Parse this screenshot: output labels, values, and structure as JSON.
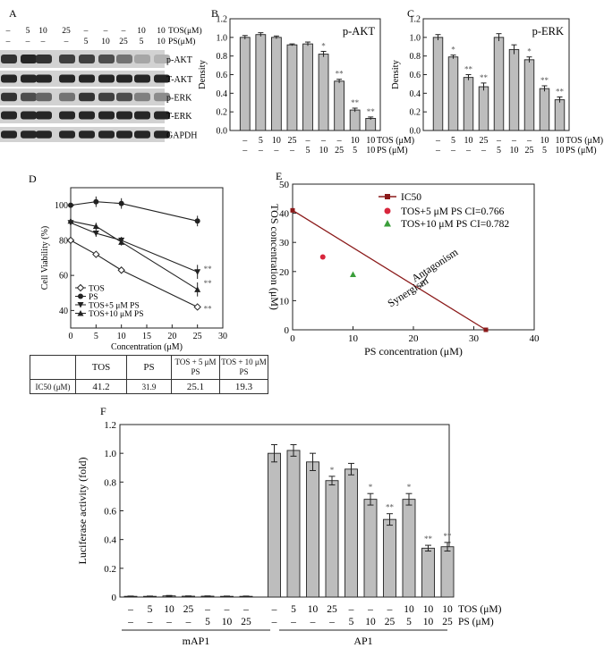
{
  "panel_letters": [
    "A",
    "B",
    "C",
    "D",
    "E",
    "F"
  ],
  "blot": {
    "lane_rows": [
      {
        "label": "TOS",
        "unit": "(μM)",
        "values": [
          "–",
          "5",
          "10",
          "25",
          "–",
          "–",
          "–",
          "10",
          "10"
        ]
      },
      {
        "label": "PS",
        "unit": "(μM)",
        "values": [
          "–",
          "–",
          "–",
          "–",
          "5",
          "10",
          "25",
          "5",
          "10"
        ]
      }
    ],
    "bands": [
      "p-AKT",
      "T-AKT",
      "p-ERK",
      "T-ERK",
      "GAPDH"
    ]
  },
  "chart_data": [
    {
      "id": "B",
      "type": "bar",
      "title": "p-AKT",
      "ylabel": "Density",
      "ylim": [
        0,
        1.2
      ],
      "yticks": [
        "0.0",
        "0.2",
        "0.4",
        "0.6",
        "0.8",
        "1.0",
        "1.2"
      ],
      "categories": [
        "ctrl",
        "TOS5",
        "TOS10",
        "TOS25",
        "PS5",
        "PS10",
        "PS25",
        "TOS10+PS5",
        "TOS10+PS10"
      ],
      "values": [
        1.0,
        1.03,
        1.0,
        0.92,
        0.93,
        0.82,
        0.53,
        0.22,
        0.13
      ],
      "errors": [
        0.02,
        0.02,
        0.015,
        0.01,
        0.02,
        0.03,
        0.02,
        0.02,
        0.015
      ],
      "significance": [
        "",
        "",
        "",
        "",
        "",
        "*",
        "**",
        "**",
        "**"
      ],
      "condition_rows": [
        {
          "label": "TOS (μM)",
          "values": [
            "–",
            "5",
            "10",
            "25",
            "–",
            "–",
            "–",
            "10",
            "10"
          ]
        },
        {
          "label": "PS (μM)",
          "values": [
            "–",
            "–",
            "–",
            "–",
            "5",
            "10",
            "25",
            "5",
            "10"
          ]
        }
      ]
    },
    {
      "id": "C",
      "type": "bar",
      "title": "p-ERK",
      "ylabel": "Density",
      "ylim": [
        0,
        1.2
      ],
      "yticks": [
        "0.0",
        "0.2",
        "0.4",
        "0.6",
        "0.8",
        "1.0",
        "1.2"
      ],
      "categories": [
        "ctrl",
        "TOS5",
        "TOS10",
        "TOS25",
        "PS5",
        "PS10",
        "PS25",
        "TOS10+PS5",
        "TOS10+PS10"
      ],
      "values": [
        1.0,
        0.79,
        0.57,
        0.47,
        1.0,
        0.87,
        0.76,
        0.45,
        0.33
      ],
      "errors": [
        0.03,
        0.02,
        0.03,
        0.04,
        0.04,
        0.05,
        0.03,
        0.03,
        0.03
      ],
      "significance": [
        "",
        "*",
        "**",
        "**",
        "",
        "",
        "*",
        "**",
        "**"
      ],
      "condition_rows": [
        {
          "label": "TOS (μM)",
          "values": [
            "–",
            "5",
            "10",
            "25",
            "–",
            "–",
            "–",
            "10",
            "10"
          ]
        },
        {
          "label": "PS (μM)",
          "values": [
            "–",
            "–",
            "–",
            "–",
            "5",
            "10",
            "25",
            "5",
            "10"
          ]
        }
      ]
    },
    {
      "id": "D",
      "type": "line",
      "ylabel": "Cell Viability (%)",
      "xlabel": "Concentration (μM)",
      "xlim": [
        0,
        30
      ],
      "ylim": [
        30,
        110
      ],
      "xticks": [
        "0",
        "5",
        "10",
        "15",
        "20",
        "25",
        "30"
      ],
      "yticks": [
        "40",
        "60",
        "80",
        "100"
      ],
      "series": [
        {
          "name": "TOS",
          "marker": "diamond",
          "x": [
            0,
            5,
            10,
            25
          ],
          "y": [
            80,
            72,
            63,
            42
          ],
          "err": [
            1,
            1,
            1,
            1
          ]
        },
        {
          "name": "PS",
          "marker": "circle",
          "x": [
            0,
            5,
            10,
            25
          ],
          "y": [
            100,
            102,
            101,
            91
          ],
          "err": [
            2,
            3,
            3,
            3
          ]
        },
        {
          "name": "TOS+5 μM PS",
          "marker": "triangle-down",
          "x": [
            0,
            5,
            10,
            25
          ],
          "y": [
            90,
            84,
            80,
            62
          ],
          "err": [
            2,
            2,
            2,
            4
          ]
        },
        {
          "name": "TOS+10 μM PS",
          "marker": "triangle-up",
          "x": [
            0,
            5,
            10,
            25
          ],
          "y": [
            91,
            88,
            79,
            52
          ],
          "err": [
            2,
            2,
            2,
            4
          ]
        }
      ],
      "significance": [
        "**",
        "**",
        "**"
      ]
    },
    {
      "id": "E",
      "type": "scatter",
      "xlabel": "PS concentration (μM)",
      "ylabel": "TOS concentration (μM)",
      "xlim": [
        0,
        40
      ],
      "ylim": [
        0,
        50
      ],
      "xticks": [
        "0",
        "10",
        "20",
        "30",
        "40"
      ],
      "yticks": [
        "0",
        "10",
        "20",
        "30",
        "40",
        "50"
      ],
      "isobole": {
        "name": "IC50",
        "x": [
          0,
          32
        ],
        "y": [
          41,
          0
        ]
      },
      "points": [
        {
          "name": "TOS+5 μM PS",
          "ci_label": "CI=0.766",
          "x": 5,
          "y": 25,
          "marker": "circle",
          "color": "#d8263c"
        },
        {
          "name": "TOS+10 μM PS",
          "ci_label": "CI=0.782",
          "x": 10,
          "y": 19,
          "marker": "triangle",
          "color": "#3a9e3a"
        }
      ],
      "annotations": [
        "Antagonism",
        "Synergism"
      ]
    },
    {
      "id": "F",
      "type": "bar",
      "ylabel": "Luciferase activity (fold)",
      "ylim": [
        0,
        1.2
      ],
      "yticks": [
        "0",
        "0.2",
        "0.4",
        "0.6",
        "0.8",
        "1.0",
        "1.2"
      ],
      "values": [
        0.005,
        0.005,
        0.008,
        0.006,
        0.006,
        0.005,
        0.005,
        1.0,
        1.02,
        0.94,
        0.81,
        0.89,
        0.68,
        0.54,
        0.68,
        0.34,
        0.35
      ],
      "errors": [
        0.002,
        0.002,
        0.003,
        0.002,
        0.002,
        0.002,
        0.002,
        0.06,
        0.04,
        0.06,
        0.03,
        0.04,
        0.04,
        0.04,
        0.04,
        0.02,
        0.03
      ],
      "significance": [
        "",
        "",
        "",
        "",
        "",
        "",
        "",
        "",
        "",
        "",
        "*",
        "",
        "*",
        "**",
        "*",
        "**",
        "**"
      ],
      "condition_rows": [
        {
          "label": "TOS (μM)",
          "values": [
            "–",
            "5",
            "10",
            "25",
            "–",
            "–",
            "–",
            "–",
            "5",
            "10",
            "25",
            "–",
            "–",
            "–",
            "10",
            "10",
            "10"
          ]
        },
        {
          "label": "PS (μM)",
          "values": [
            "–",
            "–",
            "–",
            "–",
            "5",
            "10",
            "25",
            "–",
            "–",
            "–",
            "–",
            "5",
            "10",
            "25",
            "5",
            "10",
            "25"
          ]
        }
      ],
      "groups": [
        "mAP1",
        "AP1"
      ]
    }
  ],
  "ic50_table": {
    "headers": [
      "",
      "TOS",
      "PS",
      "TOS + 5 μM PS",
      "TOS + 10 μM PS"
    ],
    "header_small": [
      false,
      false,
      false,
      true,
      true
    ],
    "row_label": "IC50 (μM)",
    "values": [
      "41.2",
      "31.9",
      "25.1",
      "19.3"
    ]
  }
}
